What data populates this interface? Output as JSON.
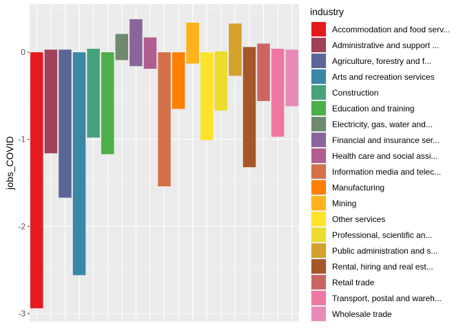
{
  "chart_data": {
    "type": "bar",
    "ylabel": "jobs_COVID",
    "xlabel": "",
    "ylim": [
      -3.05,
      0.55
    ],
    "yticks": [
      0,
      -1,
      -2,
      -3
    ],
    "ytick_labels": [
      "0",
      "-1",
      "-2",
      "-3"
    ],
    "grid": true,
    "legend": {
      "title": "industry",
      "position": "right"
    },
    "industries": [
      {
        "name": "Accommodation and food services",
        "legend_label": "Accommodation and food serv...",
        "color": "#E41A1C",
        "pairs": [
          [
            0,
            -2.94
          ]
        ]
      },
      {
        "name": "Administrative and support services",
        "legend_label": "Administrative and support ...",
        "color": "#A0405A",
        "pairs": [
          [
            0.03,
            -1.16
          ]
        ]
      },
      {
        "name": "Agriculture, forestry and fishing",
        "legend_label": "Agriculture, forestry and f...",
        "color": "#5B6697",
        "pairs": [
          [
            0.03,
            -1.67
          ]
        ]
      },
      {
        "name": "Arts and recreation services",
        "legend_label": "Arts and recreation services",
        "color": "#3A87A6",
        "pairs": [
          [
            0,
            -2.56
          ]
        ]
      },
      {
        "name": "Construction",
        "legend_label": "Construction",
        "color": "#45A27A",
        "pairs": [
          [
            0.04,
            -0.98
          ]
        ]
      },
      {
        "name": "Education and training",
        "legend_label": "Education and training",
        "color": "#4DAF4A",
        "pairs": [
          [
            0,
            -1.17
          ]
        ]
      },
      {
        "name": "Electricity, gas, water and waste services",
        "legend_label": "Electricity, gas, water and...",
        "color": "#6F8A6F",
        "pairs": [
          [
            0.21,
            -0.09
          ]
        ]
      },
      {
        "name": "Financial and insurance services",
        "legend_label": "Financial and insurance ser...",
        "color": "#8A649C",
        "pairs": [
          [
            0.38,
            -0.16
          ]
        ]
      },
      {
        "name": "Health care and social assistance",
        "legend_label": "Health care and social assi...",
        "color": "#B05D8F",
        "pairs": [
          [
            0.17,
            -0.19
          ]
        ]
      },
      {
        "name": "Information media and telecommunications",
        "legend_label": "Information media and telec...",
        "color": "#D5704A",
        "pairs": [
          [
            0,
            -1.54
          ]
        ]
      },
      {
        "name": "Manufacturing",
        "legend_label": "Manufacturing",
        "color": "#FF7F00",
        "pairs": [
          [
            0,
            -0.65
          ]
        ]
      },
      {
        "name": "Mining",
        "legend_label": "Mining",
        "color": "#FFB21A",
        "pairs": [
          [
            0.34,
            -0.13
          ]
        ]
      },
      {
        "name": "Other services",
        "legend_label": "Other services",
        "color": "#FFE32B",
        "pairs": [
          [
            0,
            -1.01
          ]
        ]
      },
      {
        "name": "Professional, scientific and technical services",
        "legend_label": "Professional, scientific an...",
        "color": "#EDDC30",
        "pairs": [
          [
            0.01,
            -0.67
          ]
        ]
      },
      {
        "name": "Public administration and safety",
        "legend_label": "Public administration and s...",
        "color": "#D3A12C",
        "pairs": [
          [
            0.33,
            -0.27
          ]
        ]
      },
      {
        "name": "Rental, hiring and real estate services",
        "legend_label": "Rental, hiring and real est...",
        "color": "#A65628",
        "pairs": [
          [
            0.06,
            -1.32
          ]
        ]
      },
      {
        "name": "Retail trade",
        "legend_label": "Retail trade",
        "color": "#CB6564",
        "pairs": [
          [
            0.1,
            -0.56
          ]
        ]
      },
      {
        "name": "Transport, postal and warehousing",
        "legend_label": "Transport, postal and wareh...",
        "color": "#EE77A1",
        "pairs": [
          [
            0.04,
            -0.97
          ],
          [
            0.04,
            0
          ]
        ]
      },
      {
        "name": "Wholesale trade",
        "legend_label": "Wholesale trade",
        "color": "#E889BA",
        "pairs": [
          [
            0.03,
            -0.62
          ]
        ]
      }
    ]
  }
}
